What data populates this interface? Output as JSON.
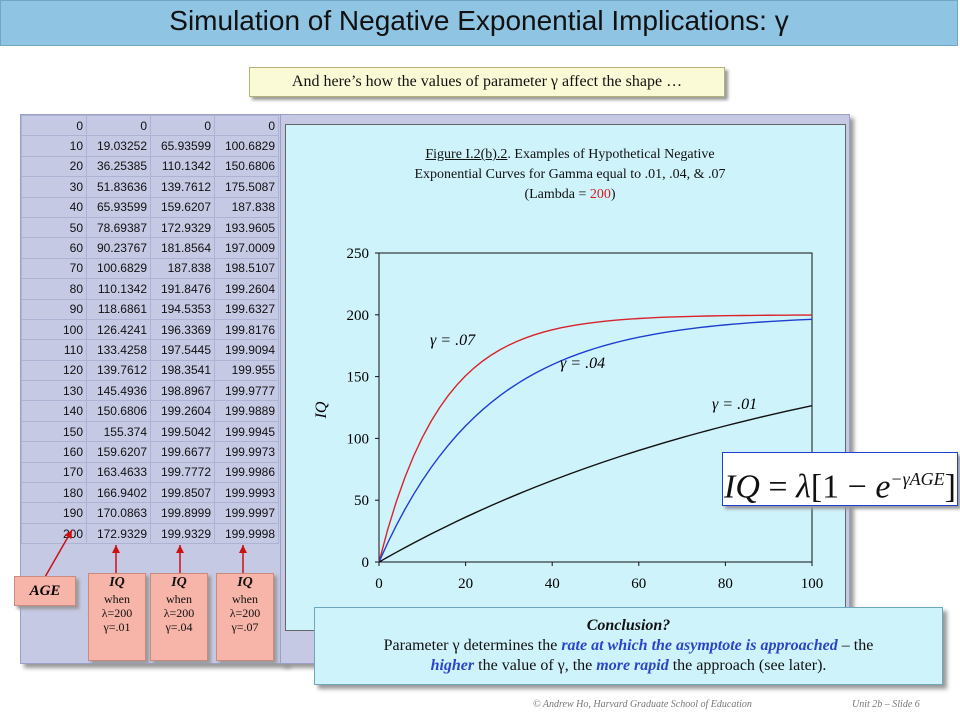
{
  "title": "Simulation of Negative Exponential Implications: γ",
  "subtitle": "And here’s how the values of parameter γ affect the shape …",
  "table": {
    "rows": [
      [
        "0",
        "0",
        "0",
        "0"
      ],
      [
        "10",
        "19.03252",
        "65.93599",
        "100.6829"
      ],
      [
        "20",
        "36.25385",
        "110.1342",
        "150.6806"
      ],
      [
        "30",
        "51.83636",
        "139.7612",
        "175.5087"
      ],
      [
        "40",
        "65.93599",
        "159.6207",
        "187.838"
      ],
      [
        "50",
        "78.69387",
        "172.9329",
        "193.9605"
      ],
      [
        "60",
        "90.23767",
        "181.8564",
        "197.0009"
      ],
      [
        "70",
        "100.6829",
        "187.838",
        "198.5107"
      ],
      [
        "80",
        "110.1342",
        "191.8476",
        "199.2604"
      ],
      [
        "90",
        "118.6861",
        "194.5353",
        "199.6327"
      ],
      [
        "100",
        "126.4241",
        "196.3369",
        "199.8176"
      ],
      [
        "110",
        "133.4258",
        "197.5445",
        "199.9094"
      ],
      [
        "120",
        "139.7612",
        "198.3541",
        "199.955"
      ],
      [
        "130",
        "145.4936",
        "198.8967",
        "199.9777"
      ],
      [
        "140",
        "150.6806",
        "199.2604",
        "199.9889"
      ],
      [
        "150",
        "155.374",
        "199.5042",
        "199.9945"
      ],
      [
        "160",
        "159.6207",
        "199.6677",
        "199.9973"
      ],
      [
        "170",
        "163.4633",
        "199.7772",
        "199.9986"
      ],
      [
        "180",
        "166.9402",
        "199.8507",
        "199.9993"
      ],
      [
        "190",
        "170.0863",
        "199.8999",
        "199.9997"
      ],
      [
        "200",
        "172.9329",
        "199.9329",
        "199.9998"
      ]
    ]
  },
  "labels": {
    "age": "AGE",
    "iq": "IQ",
    "when": "when",
    "lambda": "λ=200",
    "g1": "γ=.01",
    "g2": "γ=.04",
    "g3": "γ=.07"
  },
  "figure": {
    "caption_prefix": "Figure I.2(b).2",
    "caption_line1": ".  Examples of Hypothetical Negative",
    "caption_line2": "Exponential Curves for Gamma equal to .01, .04, & .07",
    "caption_line3a": "(Lambda = ",
    "caption_line3b": "200",
    "caption_line3c": ")"
  },
  "chart_data": {
    "type": "line",
    "title": "",
    "xlabel": "",
    "ylabel": "IQ",
    "xlim": [
      0,
      100
    ],
    "ylim": [
      0,
      250
    ],
    "xticks": [
      "0",
      "20",
      "40",
      "60",
      "80",
      "100"
    ],
    "yticks": [
      "0",
      "50",
      "100",
      "150",
      "200",
      "250"
    ],
    "lambda": 200,
    "series": [
      {
        "name": "γ = .07",
        "gamma": 0.07,
        "color": "#d9232b"
      },
      {
        "name": "γ = .04",
        "gamma": 0.04,
        "color": "#1f3fd0"
      },
      {
        "name": "γ = .01",
        "gamma": 0.01,
        "color": "#111111"
      }
    ],
    "x": [
      0,
      2,
      4,
      6,
      8,
      10,
      12,
      14,
      16,
      18,
      20,
      22,
      24,
      26,
      28,
      30,
      32,
      34,
      36,
      38,
      40,
      42,
      44,
      46,
      48,
      50,
      52,
      54,
      56,
      58,
      60,
      62,
      64,
      66,
      68,
      70,
      72,
      74,
      76,
      78,
      80,
      82,
      84,
      86,
      88,
      90,
      92,
      94,
      96,
      98,
      100
    ],
    "grid": false
  },
  "formula": "IQ = λ[1 − e^(−γAGE)]",
  "conclusion": {
    "heading": "Conclusion?",
    "line1a": "Parameter γ determines the ",
    "line1b": "rate at which the asymptote is approached",
    "line1c": " – the",
    "line2a": "higher",
    "line2b": " the value of γ, the ",
    "line2c": "more rapid",
    "line2d": " the approach (see later)."
  },
  "footer": {
    "credit": "© Andrew Ho, Harvard Graduate School of Education",
    "slide": "Unit 2b – Slide 6"
  }
}
